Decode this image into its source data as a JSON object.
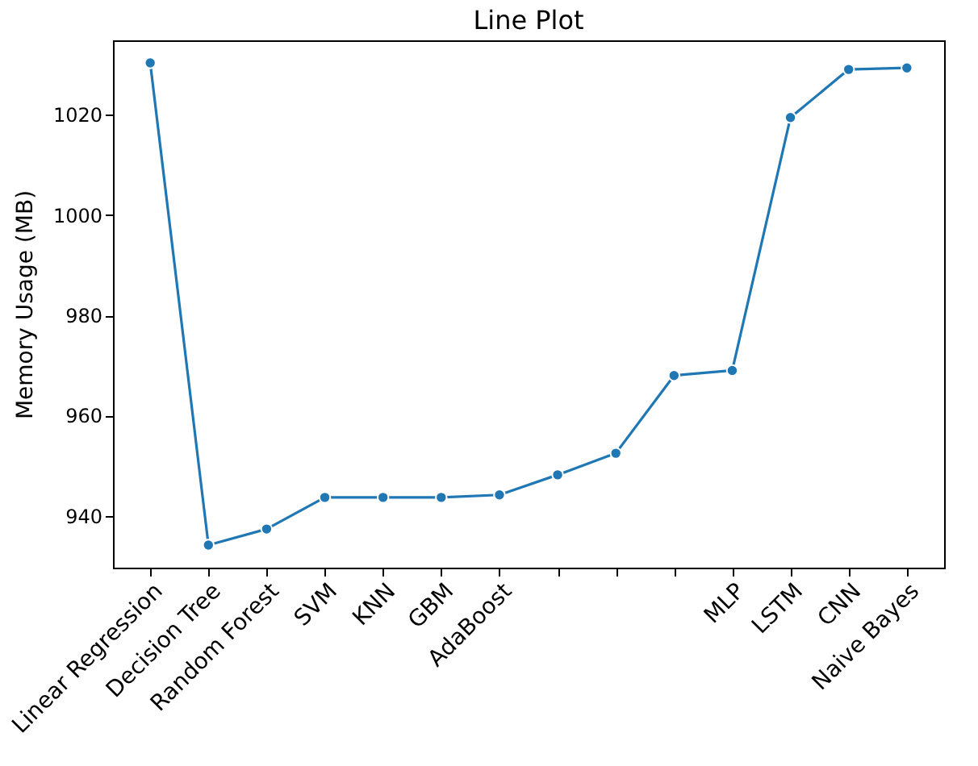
{
  "chart_data": {
    "type": "line",
    "title": "Line Plot",
    "ylabel": "Memory Usage (MB)",
    "categories": [
      "Linear Regression",
      "Decision Tree",
      "Random Forest",
      "SVM",
      "KNN",
      "GBM",
      "AdaBoost",
      null,
      null,
      null,
      "MLP",
      "LSTM",
      "CNN",
      "Naive Bayes"
    ],
    "series": [
      {
        "color": "#1f77b4",
        "values": [
          1030.3,
          934.2,
          937.4,
          943.7,
          943.7,
          943.7,
          944.2,
          948.2,
          952.5,
          968,
          969,
          1019.4,
          1029,
          1029.3
        ]
      }
    ],
    "ylim": [
      929.7,
      1034.8
    ],
    "yticks": [
      940,
      960,
      980,
      1000,
      1020
    ],
    "grid": false,
    "marker": "circle",
    "line_style": "solid"
  }
}
